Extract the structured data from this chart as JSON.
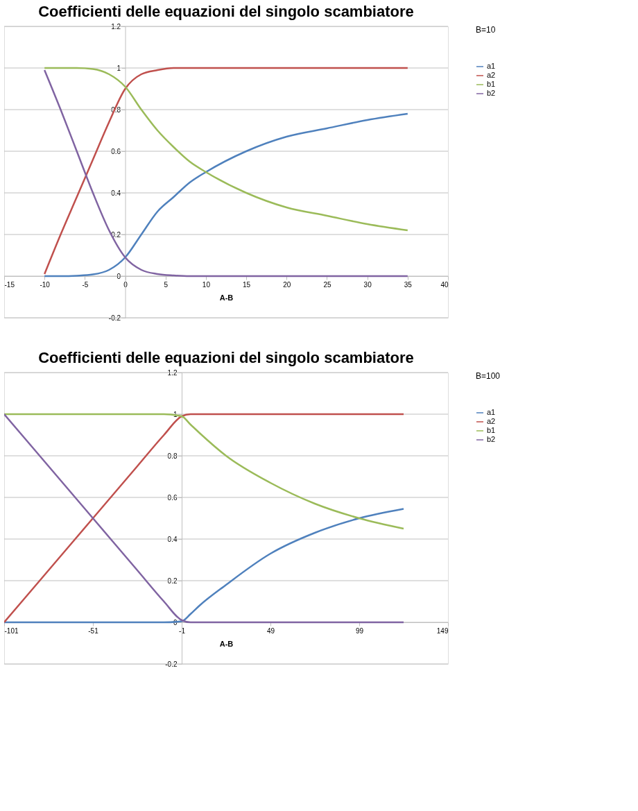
{
  "chart_data": [
    {
      "type": "line",
      "title": "Coefficienti delle equazioni del singolo scambiatore",
      "xlabel": "A-B",
      "legend_title": "B=10",
      "legend": "right",
      "grid": "y",
      "line_style": "solid",
      "marker": "none",
      "x": [
        -10,
        -8,
        -6,
        -4,
        -2,
        0,
        2,
        4,
        6,
        8,
        10,
        15,
        20,
        25,
        30,
        35
      ],
      "series": [
        {
          "name": "a1",
          "color": "#4f81bd",
          "values": [
            0,
            0,
            0.002,
            0.008,
            0.03,
            0.09,
            0.2,
            0.31,
            0.38,
            0.45,
            0.5,
            0.6,
            0.67,
            0.71,
            0.75,
            0.78
          ]
        },
        {
          "name": "a2",
          "color": "#c0504d",
          "values": [
            0.01,
            0.2,
            0.38,
            0.56,
            0.74,
            0.9,
            0.97,
            0.99,
            1,
            1,
            1,
            1,
            1,
            1,
            1,
            1
          ]
        },
        {
          "name": "b1",
          "color": "#9bbb59",
          "values": [
            1,
            1,
            1,
            0.995,
            0.97,
            0.91,
            0.8,
            0.7,
            0.62,
            0.55,
            0.5,
            0.4,
            0.33,
            0.29,
            0.25,
            0.22
          ]
        },
        {
          "name": "b2",
          "color": "#8064a2",
          "values": [
            0.99,
            0.8,
            0.6,
            0.4,
            0.22,
            0.09,
            0.03,
            0.01,
            0.003,
            0,
            0,
            0,
            0,
            0,
            0,
            0
          ]
        }
      ],
      "xlim": [
        -15,
        40
      ],
      "xticks": [
        -15,
        -10,
        -5,
        0,
        5,
        10,
        15,
        20,
        25,
        30,
        35,
        40
      ],
      "ylim": [
        -0.2,
        1.2
      ],
      "yticks": [
        -0.2,
        0,
        0.2,
        0.4,
        0.6,
        0.8,
        1,
        1.2
      ]
    },
    {
      "type": "line",
      "title": "Coefficienti delle equazioni del singolo scambiatore",
      "xlabel": "A-B",
      "legend_title": "B=100",
      "legend": "right",
      "grid": "y",
      "line_style": "solid",
      "marker": "none",
      "x": [
        -101,
        -76,
        -51,
        -26,
        -11,
        -1,
        4,
        9,
        24,
        49,
        74,
        99,
        124
      ],
      "series": [
        {
          "name": "a1",
          "color": "#4f81bd",
          "values": [
            0,
            0,
            0,
            0,
            0,
            0.005,
            0.04,
            0.08,
            0.18,
            0.33,
            0.43,
            0.5,
            0.545
          ]
        },
        {
          "name": "a2",
          "color": "#c0504d",
          "values": [
            0,
            0.25,
            0.5,
            0.75,
            0.9,
            0.99,
            1,
            1,
            1,
            1,
            1,
            1,
            1
          ]
        },
        {
          "name": "b1",
          "color": "#9bbb59",
          "values": [
            1,
            1,
            1,
            1,
            1,
            0.99,
            0.95,
            0.91,
            0.8,
            0.67,
            0.57,
            0.5,
            0.45
          ]
        },
        {
          "name": "b2",
          "color": "#8064a2",
          "values": [
            1,
            0.75,
            0.5,
            0.25,
            0.1,
            0.01,
            0,
            0,
            0,
            0,
            0,
            0,
            0
          ]
        }
      ],
      "xlim": [
        -101,
        149
      ],
      "xticks": [
        -101,
        -51,
        -1,
        49,
        99,
        149
      ],
      "ylim": [
        -0.2,
        1.2
      ],
      "yticks": [
        -0.2,
        0,
        0.2,
        0.4,
        0.6,
        0.8,
        1,
        1.2
      ]
    }
  ]
}
